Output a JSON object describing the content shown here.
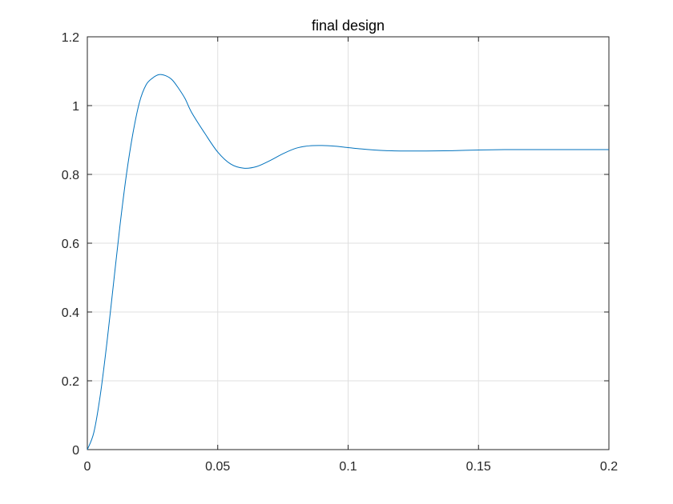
{
  "chart_data": {
    "type": "line",
    "title": "final design",
    "xlabel": "",
    "ylabel": "",
    "xlim": [
      0,
      0.2
    ],
    "ylim": [
      0,
      1.2
    ],
    "grid": true,
    "xticks": [
      0,
      0.05,
      0.1,
      0.15,
      0.2
    ],
    "xtick_labels": [
      "0",
      "0.05",
      "0.1",
      "0.15",
      "0.2"
    ],
    "yticks": [
      0,
      0.2,
      0.4,
      0.6,
      0.8,
      1,
      1.2
    ],
    "ytick_labels": [
      "0",
      "0.2",
      "0.4",
      "0.6",
      "0.8",
      "1",
      "1.2"
    ],
    "colors": {
      "line": "#0072BD",
      "grid": "#DFDFDF",
      "axes": "#262626"
    },
    "series": [
      {
        "x": [
          0,
          0.0025,
          0.005,
          0.0075,
          0.01,
          0.0125,
          0.015,
          0.0175,
          0.02,
          0.0225,
          0.025,
          0.0275,
          0.03,
          0.0325,
          0.035,
          0.0375,
          0.04,
          0.045,
          0.05,
          0.055,
          0.06,
          0.065,
          0.07,
          0.075,
          0.08,
          0.085,
          0.09,
          0.095,
          0.1,
          0.105,
          0.11,
          0.115,
          0.12,
          0.13,
          0.14,
          0.15,
          0.16,
          0.17,
          0.18,
          0.19,
          0.2
        ],
        "y": [
          0,
          0.05,
          0.16,
          0.31,
          0.48,
          0.65,
          0.8,
          0.92,
          1.01,
          1.06,
          1.08,
          1.09,
          1.087,
          1.075,
          1.05,
          1.02,
          0.98,
          0.92,
          0.865,
          0.83,
          0.818,
          0.823,
          0.84,
          0.86,
          0.876,
          0.883,
          0.884,
          0.882,
          0.878,
          0.874,
          0.871,
          0.869,
          0.868,
          0.868,
          0.869,
          0.871,
          0.872,
          0.872,
          0.872,
          0.872,
          0.872
        ]
      }
    ]
  }
}
